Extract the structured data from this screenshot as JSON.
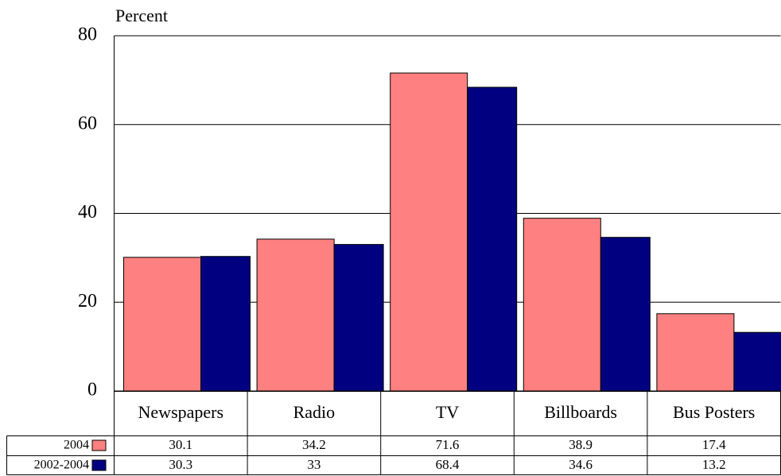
{
  "chart_data": {
    "type": "bar",
    "y_label": "Percent",
    "categories": [
      "Newspapers",
      "Radio",
      "TV",
      "Billboards",
      "Bus Posters"
    ],
    "series": [
      {
        "name": "2004",
        "color": "#ff8080",
        "values": [
          30.1,
          34.2,
          71.6,
          38.9,
          17.4
        ]
      },
      {
        "name": "2002-2004",
        "color": "#000080",
        "values": [
          30.3,
          33,
          68.4,
          34.6,
          13.2
        ]
      }
    ],
    "ylim": [
      0,
      80
    ],
    "yticks": [
      0,
      20,
      40,
      60,
      80
    ],
    "grid": true
  }
}
